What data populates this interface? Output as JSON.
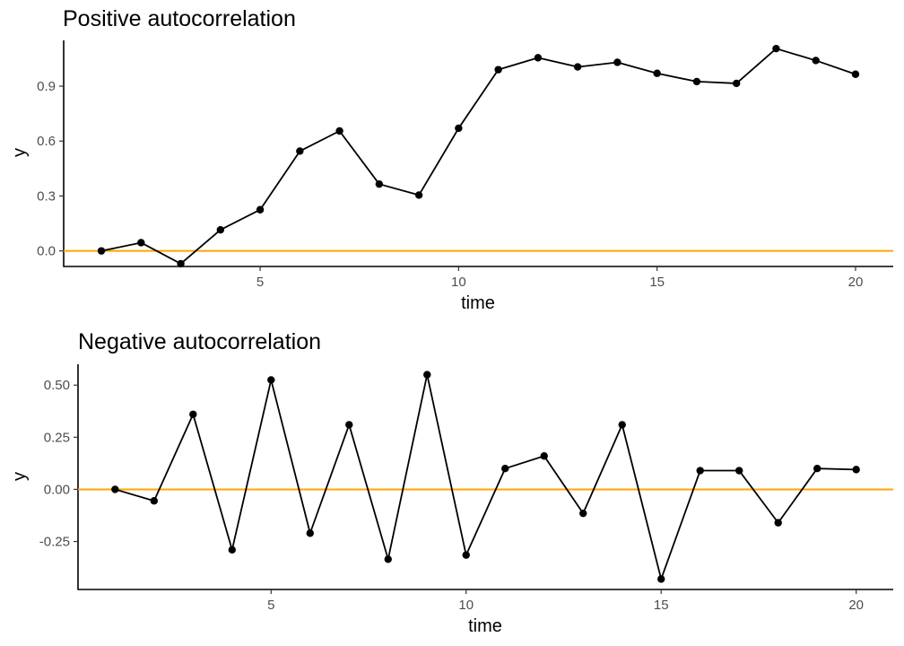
{
  "chart_data": [
    {
      "type": "line",
      "title": "Positive autocorrelation",
      "xlabel": "time",
      "ylabel": "y",
      "xlim": [
        0.05,
        20.95
      ],
      "ylim": [
        -0.085,
        1.15
      ],
      "x_ticks": [
        5,
        10,
        15,
        20
      ],
      "x_tick_labels": [
        "5",
        "10",
        "15",
        "20"
      ],
      "y_ticks": [
        0.0,
        0.3,
        0.6,
        0.9
      ],
      "y_tick_labels": [
        "0.0",
        "0.3",
        "0.6",
        "0.9"
      ],
      "grid": false,
      "markers": true,
      "reference_line": {
        "y": 0,
        "color": "#FFA500"
      },
      "series_color": "#000000",
      "x": [
        1,
        2,
        3,
        4,
        5,
        6,
        7,
        8,
        9,
        10,
        11,
        12,
        13,
        14,
        15,
        16,
        17,
        18,
        19,
        20
      ],
      "y": [
        0.0,
        0.045,
        -0.07,
        0.115,
        0.225,
        0.545,
        0.655,
        0.365,
        0.305,
        0.67,
        0.99,
        1.055,
        1.005,
        1.03,
        0.97,
        0.925,
        0.915,
        1.105,
        1.04,
        0.965
      ]
    },
    {
      "type": "line",
      "title": "Negative autocorrelation",
      "xlabel": "time",
      "ylabel": "y",
      "xlim": [
        0.05,
        20.95
      ],
      "ylim": [
        -0.48,
        0.6
      ],
      "x_ticks": [
        5,
        10,
        15,
        20
      ],
      "x_tick_labels": [
        "5",
        "10",
        "15",
        "20"
      ],
      "y_ticks": [
        -0.25,
        0.0,
        0.25,
        0.5
      ],
      "y_tick_labels": [
        "-0.25",
        "0.00",
        "0.25",
        "0.50"
      ],
      "grid": false,
      "markers": true,
      "reference_line": {
        "y": 0,
        "color": "#FFA500"
      },
      "series_color": "#000000",
      "x": [
        1,
        2,
        3,
        4,
        5,
        6,
        7,
        8,
        9,
        10,
        11,
        12,
        13,
        14,
        15,
        16,
        17,
        18,
        19,
        20
      ],
      "y": [
        0.0,
        -0.055,
        0.36,
        -0.29,
        0.525,
        -0.21,
        0.31,
        -0.335,
        0.55,
        -0.315,
        0.1,
        0.16,
        -0.115,
        0.31,
        -0.43,
        0.09,
        0.09,
        -0.16,
        0.1,
        0.095
      ]
    }
  ]
}
